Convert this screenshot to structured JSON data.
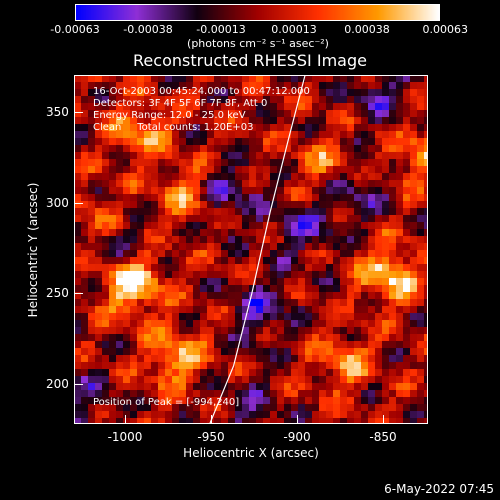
{
  "colorbar": {
    "tick_labels": [
      "-0.00063",
      "-0.00038",
      "-0.00013",
      "0.00013",
      "0.00038",
      "0.00063"
    ],
    "unit_label": "(photons cm⁻² s⁻¹ asec⁻²)",
    "range": [
      -0.00063,
      0.00063
    ],
    "colors": [
      "#0000ff",
      "#8f2fd6",
      "#110010",
      "#a00000",
      "#ff3000",
      "#ff9a00",
      "#ffffff"
    ]
  },
  "title": "Reconstructed RHESSI Image",
  "info": {
    "time_range": "16-Oct-2003 00:45:24.000 to 00:47:12.000",
    "detectors": "Detectors: 3F 4F 5F 6F 7F 8F, Att 0",
    "energy": "Energy Range: 12.0 - 25.0 keV",
    "method": "Clean     Total counts: 1.20E+03",
    "peak": "Position of Peak = [-994,240]"
  },
  "axes": {
    "xlabel": "Heliocentric X (arcsec)",
    "ylabel": "Heliocentric Y (arcsec)",
    "x_ticks": [
      "-1000",
      "-950",
      "-900",
      "-850"
    ],
    "y_ticks": [
      "350",
      "300",
      "250",
      "200"
    ],
    "xlim": [
      -1022,
      -829
    ],
    "ylim": [
      178,
      370
    ]
  },
  "chart_data": {
    "type": "heatmap",
    "title": "Reconstructed RHESSI Image",
    "xlabel": "Heliocentric X (arcsec)",
    "ylabel": "Heliocentric Y (arcsec)",
    "xlim": [
      -1022,
      -829
    ],
    "ylim": [
      178,
      370
    ],
    "x_ticks": [
      -1000,
      -950,
      -900,
      -850
    ],
    "y_ticks": [
      200,
      250,
      300,
      350
    ],
    "color_range": [
      -0.00063,
      0.00063
    ],
    "peak_position": [
      -994,
      240
    ],
    "bright_sources": [
      {
        "x": -990,
        "y": 255,
        "level": 0.00063
      },
      {
        "x": -967,
        "y": 215,
        "level": 0.00045
      },
      {
        "x": -986,
        "y": 340,
        "level": 0.0004
      },
      {
        "x": -850,
        "y": 260,
        "level": 0.00055
      },
      {
        "x": -833,
        "y": 325,
        "level": 0.00035
      },
      {
        "x": -962,
        "y": 305,
        "level": 0.00035
      },
      {
        "x": -875,
        "y": 212,
        "level": 0.00035
      },
      {
        "x": -885,
        "y": 320,
        "level": 0.0003
      },
      {
        "x": -1008,
        "y": 290,
        "level": 0.0003
      }
    ],
    "dark_sources": [
      {
        "x": -1000,
        "y": 280,
        "level": -0.0003
      },
      {
        "x": -937,
        "y": 305,
        "level": -0.0003
      },
      {
        "x": -920,
        "y": 240,
        "level": -0.00035
      },
      {
        "x": -897,
        "y": 285,
        "level": -0.0003
      },
      {
        "x": -855,
        "y": 360,
        "level": -0.0003
      },
      {
        "x": -870,
        "y": 305,
        "level": -0.00028
      },
      {
        "x": -925,
        "y": 185,
        "level": -0.00025
      },
      {
        "x": -1015,
        "y": 190,
        "level": -0.00025
      }
    ],
    "limb_curve": [
      [
        -948,
        178
      ],
      [
        -935,
        210
      ],
      [
        -925,
        250
      ],
      [
        -915,
        295
      ],
      [
        -905,
        335
      ],
      [
        -896,
        370
      ]
    ]
  },
  "timestamp": "6-May-2022 07:45"
}
